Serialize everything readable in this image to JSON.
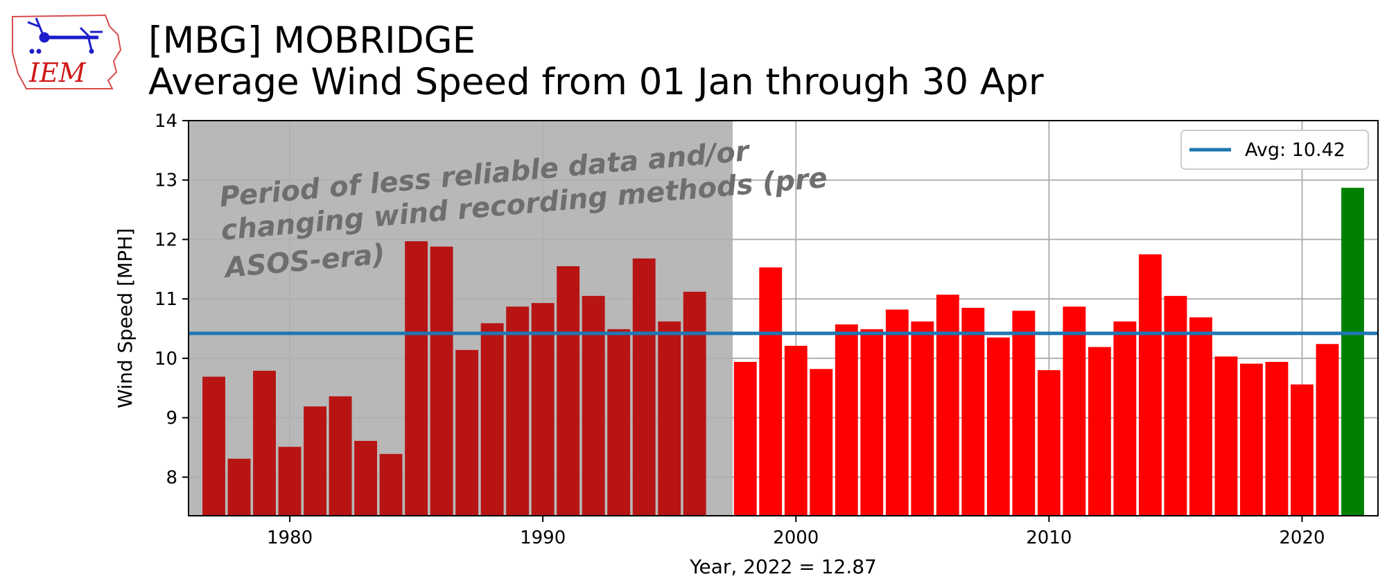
{
  "logo": {
    "text": "IEM"
  },
  "chart_data": {
    "type": "bar",
    "title": "[MBG] MOBRIDGE",
    "subtitle": "Average Wind Speed from 01 Jan through 30 Apr",
    "xlabel": "Year, 2022 = 12.87",
    "ylabel": "Wind Speed [MPH]",
    "xlim": [
      1976,
      2023
    ],
    "ylim": [
      7.35,
      14
    ],
    "xticks": [
      1980,
      1990,
      2000,
      2010,
      2020
    ],
    "yticks": [
      8,
      9,
      10,
      11,
      12,
      13,
      14
    ],
    "grid": true,
    "years": [
      1977,
      1978,
      1979,
      1980,
      1981,
      1982,
      1983,
      1984,
      1985,
      1986,
      1987,
      1988,
      1989,
      1990,
      1991,
      1992,
      1993,
      1994,
      1995,
      1996,
      1998,
      1999,
      2000,
      2001,
      2002,
      2003,
      2004,
      2005,
      2006,
      2007,
      2008,
      2009,
      2010,
      2011,
      2012,
      2013,
      2014,
      2015,
      2016,
      2017,
      2018,
      2019,
      2020,
      2021,
      2022
    ],
    "values": [
      9.69,
      8.31,
      9.79,
      8.51,
      9.19,
      9.36,
      8.61,
      8.39,
      11.97,
      11.88,
      10.14,
      10.59,
      10.87,
      10.93,
      11.55,
      11.05,
      10.49,
      11.68,
      10.62,
      11.12,
      9.94,
      11.53,
      10.21,
      9.82,
      10.57,
      10.49,
      10.82,
      10.62,
      11.07,
      10.85,
      10.35,
      10.8,
      9.8,
      10.87,
      10.19,
      10.62,
      11.75,
      11.05,
      10.69,
      10.03,
      9.91,
      9.94,
      9.56,
      10.24,
      12.87
    ],
    "average": 10.42,
    "legend": {
      "label": "Avg: 10.42",
      "position": "top-right"
    },
    "shaded_region": {
      "x_end": 1997.5,
      "annotation": [
        "Period of less reliable data and/or",
        "changing wind recording methods (pre",
        "ASOS-era)"
      ]
    },
    "colors": {
      "pre_asos": "#b81414",
      "normal": "#ff0000",
      "highlight": "#008000",
      "average_line": "#1f77b4",
      "shade": "#b8b8b8",
      "grid": "#b0b0b0"
    }
  }
}
